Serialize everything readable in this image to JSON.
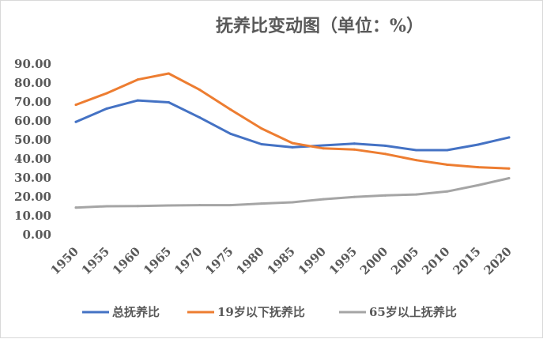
{
  "chart_data": {
    "type": "line",
    "title": "抚养比变动图（单位：%）",
    "xlabel": "",
    "ylabel": "",
    "x": [
      "1950",
      "1955",
      "1960",
      "1965",
      "1970",
      "1975",
      "1980",
      "1985",
      "1990",
      "1995",
      "2000",
      "2005",
      "2010",
      "2015",
      "2020"
    ],
    "ylim": [
      0,
      90
    ],
    "yticks": [
      "0.00",
      "10.00",
      "20.00",
      "30.00",
      "40.00",
      "50.00",
      "60.00",
      "70.00",
      "80.00",
      "90.00"
    ],
    "grid": false,
    "legend_position": "bottom",
    "series": [
      {
        "name": "总抚养比",
        "color": "#4472C4",
        "values": [
          59.5,
          66.5,
          70.8,
          69.8,
          61.8,
          53.2,
          47.7,
          46.1,
          47.1,
          48.0,
          46.9,
          44.6,
          44.6,
          47.5,
          51.3
        ]
      },
      {
        "name": "19岁以下抚养比",
        "color": "#ED7D31",
        "values": [
          68.5,
          74.6,
          81.8,
          85.0,
          76.4,
          66.0,
          56.0,
          48.3,
          45.5,
          44.9,
          42.6,
          39.3,
          36.9,
          35.6,
          34.9
        ]
      },
      {
        "name": "65岁以上抚养比",
        "color": "#A5A5A5",
        "values": [
          14.3,
          15.0,
          15.1,
          15.4,
          15.6,
          15.6,
          16.4,
          17.1,
          18.7,
          19.9,
          20.7,
          21.2,
          22.8,
          26.1,
          29.8
        ]
      }
    ]
  }
}
